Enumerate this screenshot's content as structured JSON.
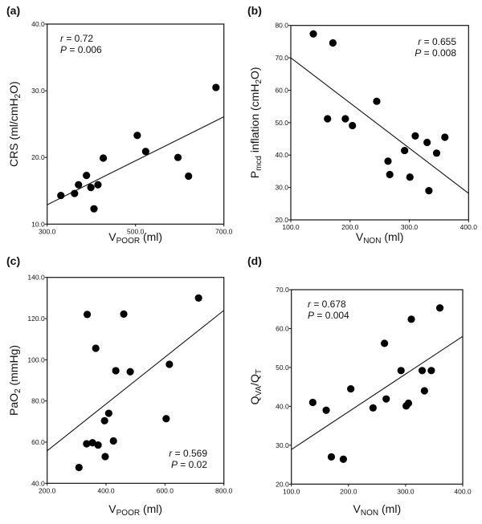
{
  "chart_data": [
    {
      "type": "scatter",
      "panel_label": "(a)",
      "xlabel": [
        {
          "t": "V"
        },
        {
          "t": "POOR",
          "sub": true
        },
        {
          "t": " (ml)"
        }
      ],
      "ylabel": [
        {
          "t": "CRS (ml/cmH"
        },
        {
          "t": "2",
          "sub": true
        },
        {
          "t": "O)"
        }
      ],
      "xlim": [
        300,
        700
      ],
      "ylim": [
        10,
        40
      ],
      "xticks": [
        300,
        500,
        700
      ],
      "xtick_labels": [
        "300.0",
        "500.0",
        "700.0"
      ],
      "yticks": [
        10,
        20,
        30,
        40
      ],
      "ytick_labels": [
        "10.0",
        "20.0",
        "30.0",
        "40.0"
      ],
      "annotation": {
        "r_label": "r",
        "r_value": " = 0.72",
        "p_label": "P",
        "p_value": " = 0.006",
        "position": "top-left"
      },
      "fit_line": [
        [
          300,
          12.9
        ],
        [
          700,
          26.1
        ]
      ],
      "points": [
        [
          331,
          14.3
        ],
        [
          362,
          14.6
        ],
        [
          371,
          15.9
        ],
        [
          389,
          17.3
        ],
        [
          399,
          15.5
        ],
        [
          406,
          12.3
        ],
        [
          415,
          15.9
        ],
        [
          427,
          19.9
        ],
        [
          504,
          23.3
        ],
        [
          523,
          20.9
        ],
        [
          596,
          20.0
        ],
        [
          620,
          17.2
        ],
        [
          682,
          30.5
        ]
      ]
    },
    {
      "type": "scatter",
      "panel_label": "(b)",
      "xlabel": [
        {
          "t": "V"
        },
        {
          "t": "NON",
          "sub": true
        },
        {
          "t": " (ml)"
        }
      ],
      "ylabel": [
        {
          "t": "P"
        },
        {
          "t": "mcd",
          "sub": true
        },
        {
          "t": " inflation (cmH"
        },
        {
          "t": "2",
          "sub": true
        },
        {
          "t": "O)"
        }
      ],
      "xlim": [
        100,
        400
      ],
      "ylim": [
        20,
        80
      ],
      "xticks": [
        100,
        200,
        300,
        400
      ],
      "xtick_labels": [
        "100.0",
        "200.0",
        "300.0",
        "400.0"
      ],
      "yticks": [
        20,
        30,
        40,
        50,
        60,
        70,
        80
      ],
      "ytick_labels": [
        "20.0",
        "30.0",
        "40.0",
        "50.0",
        "60.0",
        "70.0",
        "80.0"
      ],
      "annotation": {
        "r_label": "r",
        "r_value": " = 0.655",
        "p_label": "P",
        "p_value": " = 0.008",
        "position": "top-right"
      },
      "fit_line": [
        [
          100,
          70.0
        ],
        [
          400,
          28.2
        ]
      ],
      "points": [
        [
          138,
          77.4
        ],
        [
          171,
          74.6
        ],
        [
          162,
          51.2
        ],
        [
          192,
          51.2
        ],
        [
          204,
          49.1
        ],
        [
          245,
          56.6
        ],
        [
          264,
          38.1
        ],
        [
          267,
          34.0
        ],
        [
          292,
          41.4
        ],
        [
          310,
          45.9
        ],
        [
          301,
          33.2
        ],
        [
          330,
          43.9
        ],
        [
          346,
          40.6
        ],
        [
          333,
          29.0
        ],
        [
          360,
          45.5
        ]
      ]
    },
    {
      "type": "scatter",
      "panel_label": "(c)",
      "xlabel": [
        {
          "t": "V"
        },
        {
          "t": "POOR",
          "sub": true
        },
        {
          "t": " (ml)"
        }
      ],
      "ylabel": [
        {
          "t": "PaO"
        },
        {
          "t": "2",
          "sub": true
        },
        {
          "t": " (mmHg)"
        }
      ],
      "xlim": [
        200,
        800
      ],
      "ylim": [
        40,
        140
      ],
      "xticks": [
        200,
        400,
        600,
        800
      ],
      "xtick_labels": [
        "200.0",
        "400.0",
        "600.0",
        "800.0"
      ],
      "yticks": [
        40,
        60,
        80,
        100,
        120,
        140
      ],
      "ytick_labels": [
        "40.0",
        "60.0",
        "80.0",
        "100.0",
        "120.0",
        "140.0"
      ],
      "annotation": {
        "r_label": "r",
        "r_value": " = 0.569",
        "p_label": "P",
        "p_value": " = 0.02",
        "position": "bottom-right"
      },
      "fit_line": [
        [
          200,
          55.8
        ],
        [
          800,
          124.0
        ]
      ],
      "points": [
        [
          308,
          47.7
        ],
        [
          334,
          59.2
        ],
        [
          354,
          59.7
        ],
        [
          373,
          58.6
        ],
        [
          397,
          53.0
        ],
        [
          395,
          70.4
        ],
        [
          409,
          74.0
        ],
        [
          425,
          60.6
        ],
        [
          336,
          122.0
        ],
        [
          460,
          122.2
        ],
        [
          365,
          105.6
        ],
        [
          433,
          94.7
        ],
        [
          482,
          94.2
        ],
        [
          604,
          71.4
        ],
        [
          615,
          97.8
        ],
        [
          714,
          130.0
        ]
      ]
    },
    {
      "type": "scatter",
      "panel_label": "(d)",
      "xlabel": [
        {
          "t": "V"
        },
        {
          "t": "NON",
          "sub": true
        },
        {
          "t": " (ml)"
        }
      ],
      "ylabel": [
        {
          "t": "Q"
        },
        {
          "t": "VA",
          "sub": true
        },
        {
          "t": "/Q"
        },
        {
          "t": "T",
          "sub": true
        }
      ],
      "xlim": [
        100,
        400
      ],
      "ylim": [
        20,
        70
      ],
      "xticks": [
        100,
        200,
        300,
        400
      ],
      "xtick_labels": [
        "100.0",
        "200.0",
        "300.0",
        "400.0"
      ],
      "yticks": [
        20,
        30,
        40,
        50,
        60,
        70
      ],
      "ytick_labels": [
        "20.0",
        "30.0",
        "40.0",
        "50.0",
        "60.0",
        "70.0"
      ],
      "annotation": {
        "r_label": "r",
        "r_value": " = 0.678",
        "p_label": "P",
        "p_value": " = 0.004",
        "position": "top-left"
      },
      "fit_line": [
        [
          100,
          28.9
        ],
        [
          400,
          58.0
        ]
      ],
      "points": [
        [
          137.5,
          41.0
        ],
        [
          161,
          39.0
        ],
        [
          170,
          27.0
        ],
        [
          191,
          26.4
        ],
        [
          204,
          44.5
        ],
        [
          243,
          39.6
        ],
        [
          263,
          56.2
        ],
        [
          266,
          41.9
        ],
        [
          292,
          49.2
        ],
        [
          301,
          40.1
        ],
        [
          305,
          40.8
        ],
        [
          310,
          62.4
        ],
        [
          329,
          49.2
        ],
        [
          333,
          44.0
        ],
        [
          345,
          49.2
        ],
        [
          360,
          65.3
        ]
      ]
    }
  ]
}
